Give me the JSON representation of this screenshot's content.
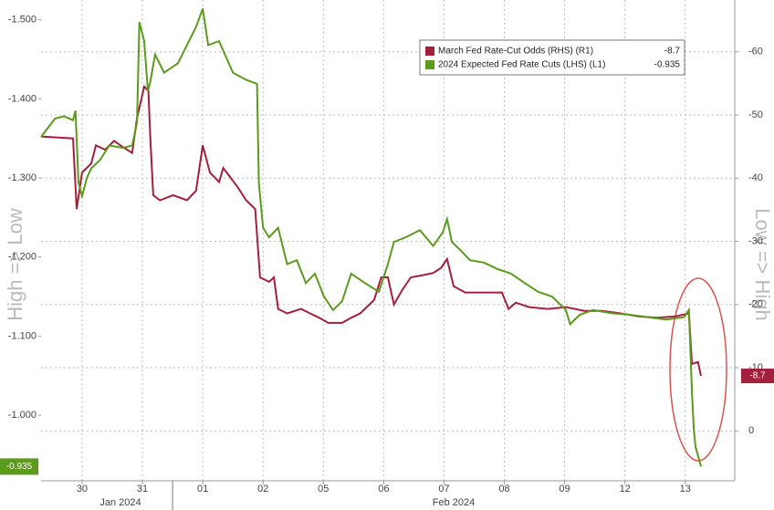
{
  "chart_data": {
    "type": "line",
    "y_label": "High => Low",
    "y2_label": "Low => High",
    "grid": true,
    "xlim": [
      -0.68,
      10.82
    ],
    "xticks": [
      {
        "value": 0,
        "label": "30"
      },
      {
        "value": 1,
        "label": "31"
      },
      {
        "value": 2,
        "label": "01"
      },
      {
        "value": 3,
        "label": "02"
      },
      {
        "value": 4,
        "label": "05"
      },
      {
        "value": 5,
        "label": "06"
      },
      {
        "value": 6,
        "label": "07"
      },
      {
        "value": 7,
        "label": "08"
      },
      {
        "value": 8,
        "label": "09"
      },
      {
        "value": 9,
        "label": "12"
      },
      {
        "value": 10,
        "label": "13"
      }
    ],
    "x_group_labels": [
      "Jan 2024",
      "Feb 2024"
    ],
    "ylim": [
      -0.917,
      -1.525
    ],
    "yticks": [
      {
        "value": -1.5,
        "label": "-1.500"
      },
      {
        "value": -1.4,
        "label": "-1.400"
      },
      {
        "value": -1.3,
        "label": "-1.300"
      },
      {
        "value": -1.2,
        "label": "-1.200"
      },
      {
        "value": -1.1,
        "label": "-1.100"
      },
      {
        "value": -1.0,
        "label": "-1.000"
      }
    ],
    "y2lim": [
      7.9,
      -68.2
    ],
    "y2ticks": [
      -60,
      -50,
      -40,
      -30,
      -20,
      -10,
      0
    ],
    "series": [
      {
        "name": "March Fed Rate-Cut Odds (RHS) (R1)",
        "color": "#a3203c",
        "axis": "y2",
        "x": [
          -0.68,
          -0.15,
          -0.09,
          0,
          0.15,
          0.23,
          0.38,
          0.53,
          0.68,
          0.83,
          0.91,
          1.03,
          1.1,
          1.13,
          1.18,
          1.29,
          1.51,
          1.74,
          1.89,
          2.0,
          2.12,
          2.27,
          2.34,
          2.57,
          2.72,
          2.87,
          2.95,
          3.1,
          3.18,
          3.25,
          3.4,
          3.63,
          3.78,
          3.93,
          4.08,
          4.31,
          4.46,
          4.61,
          4.84,
          4.96,
          5.07,
          5.17,
          5.3,
          5.45,
          5.63,
          5.82,
          5.95,
          6.05,
          6.16,
          6.35,
          6.66,
          6.96,
          7.07,
          7.19,
          7.41,
          7.72,
          8.02,
          8.32,
          8.62,
          8.93,
          9.23,
          9.53,
          9.83,
          10.06,
          10.11,
          10.21,
          10.26
        ],
        "values": [
          -46.6,
          -46.3,
          -35.1,
          -40.9,
          -42.3,
          -45.2,
          -44.5,
          -45.9,
          -44.9,
          -44.0,
          -49.5,
          -54.5,
          -53.8,
          -46.6,
          -37.3,
          -36.5,
          -37.3,
          -36.5,
          -38.0,
          -45.2,
          -40.9,
          -39.4,
          -41.6,
          -38.7,
          -36.5,
          -35.1,
          -24.3,
          -23.6,
          -24.3,
          -19.3,
          -18.6,
          -19.3,
          -18.6,
          -17.9,
          -17.1,
          -17.1,
          -17.9,
          -18.6,
          -20.7,
          -24.3,
          -24.3,
          -20.0,
          -22.2,
          -24.3,
          -24.6,
          -25.0,
          -25.8,
          -27.2,
          -22.9,
          -21.9,
          -21.9,
          -21.9,
          -19.3,
          -20.3,
          -19.6,
          -19.3,
          -19.6,
          -19.0,
          -19.0,
          -18.6,
          -18.1,
          -17.9,
          -18.1,
          -18.6,
          -10.6,
          -10.9,
          -8.7
        ]
      },
      {
        "name": "2024 Expected Fed Rate Cuts (LHS) (L1)",
        "color": "#5b9a1b",
        "axis": "y",
        "x": [
          -0.68,
          -0.45,
          -0.3,
          -0.15,
          -0.11,
          -0.06,
          0,
          0.08,
          0.15,
          0.3,
          0.45,
          0.68,
          0.83,
          0.91,
          0.95,
          1.03,
          1.09,
          1.13,
          1.21,
          1.36,
          1.59,
          1.74,
          1.89,
          2.0,
          2.09,
          2.27,
          2.5,
          2.72,
          2.9,
          2.93,
          3.0,
          3.1,
          3.25,
          3.4,
          3.56,
          3.71,
          3.86,
          4.01,
          4.16,
          4.31,
          4.46,
          4.69,
          4.92,
          5.07,
          5.17,
          5.37,
          5.6,
          5.82,
          5.98,
          6.05,
          6.13,
          6.28,
          6.43,
          6.66,
          6.88,
          7.11,
          7.34,
          7.56,
          7.79,
          8.02,
          8.09,
          8.25,
          8.47,
          8.77,
          9.08,
          9.38,
          9.68,
          9.98,
          10.06,
          10.11,
          10.14,
          10.17,
          10.26
        ],
        "values": [
          -1.352,
          -1.375,
          -1.378,
          -1.373,
          -1.385,
          -1.294,
          -1.277,
          -1.3,
          -1.312,
          -1.323,
          -1.341,
          -1.338,
          -1.341,
          -1.37,
          -1.497,
          -1.473,
          -1.41,
          -1.421,
          -1.456,
          -1.433,
          -1.445,
          -1.468,
          -1.491,
          -1.514,
          -1.468,
          -1.473,
          -1.433,
          -1.424,
          -1.419,
          -1.294,
          -1.237,
          -1.225,
          -1.237,
          -1.191,
          -1.196,
          -1.167,
          -1.179,
          -1.15,
          -1.133,
          -1.144,
          -1.179,
          -1.167,
          -1.156,
          -1.191,
          -1.219,
          -1.225,
          -1.234,
          -1.214,
          -1.231,
          -1.248,
          -1.219,
          -1.208,
          -1.196,
          -1.193,
          -1.185,
          -1.179,
          -1.167,
          -1.156,
          -1.15,
          -1.133,
          -1.115,
          -1.127,
          -1.133,
          -1.129,
          -1.127,
          -1.124,
          -1.121,
          -1.124,
          -1.133,
          -1.029,
          -0.983,
          -0.96,
          -0.935
        ]
      }
    ]
  }
}
